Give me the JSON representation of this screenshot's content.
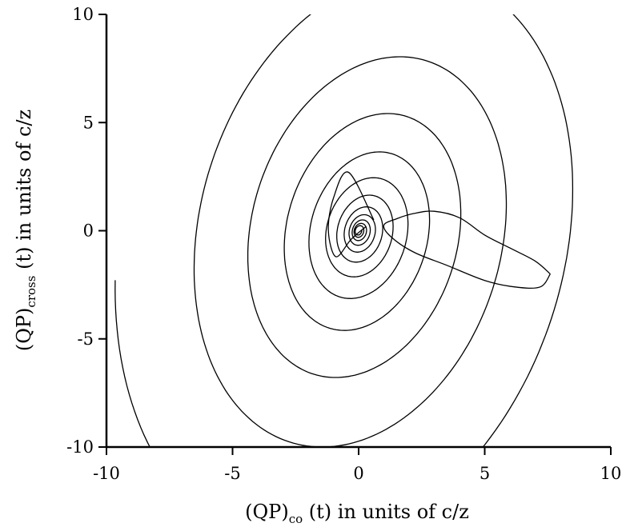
{
  "chart_data": {
    "type": "line",
    "title": "",
    "xlabel": {
      "pre": "(QP)",
      "sub": "co",
      "post": " (t) in units of c/z"
    },
    "ylabel": {
      "pre": "(QP)",
      "sub": "cross",
      "post": " (t) in units of c/z"
    },
    "xlim": [
      -10,
      10
    ],
    "ylim": [
      -10,
      10
    ],
    "xticks": [
      -10,
      -5,
      0,
      5,
      10
    ],
    "yticks": [
      -10,
      -5,
      0,
      5,
      10
    ],
    "xtick_labels": [
      "-10",
      "-5",
      "0",
      "5",
      "10"
    ],
    "ytick_labels": [
      "-10",
      "-5",
      "0",
      "5",
      "10"
    ],
    "grid": false,
    "line_color": "#000000",
    "trajectory": {
      "start": [
        7.6,
        -2.0
      ],
      "points": [
        [
          7.6,
          -2.0
        ],
        [
          7.0,
          -1.4
        ],
        [
          6.0,
          -0.8
        ],
        [
          5.0,
          -0.2
        ],
        [
          4.0,
          0.6
        ],
        [
          3.0,
          0.9
        ],
        [
          2.2,
          0.8
        ],
        [
          1.5,
          0.55
        ],
        [
          1.0,
          0.25
        ],
        [
          1.3,
          -0.3
        ],
        [
          2.2,
          -1.0
        ],
        [
          3.5,
          -1.6
        ],
        [
          5.0,
          -2.3
        ],
        [
          6.2,
          -2.6
        ],
        [
          7.2,
          -2.6
        ],
        [
          7.6,
          -2.0
        ]
      ],
      "triangle_loop": [
        [
          0.6,
          0.5
        ],
        [
          -0.4,
          2.7
        ],
        [
          -1.0,
          1.5
        ],
        [
          -1.2,
          0.0
        ],
        [
          -0.9,
          -1.2
        ],
        [
          -0.3,
          -0.4
        ],
        [
          0.3,
          0.2
        ]
      ]
    },
    "spiral": {
      "center": [
        0.0,
        0.0
      ],
      "semi_axes_start": [
        9.6,
        16.2
      ],
      "semi_axes_end": [
        0.12,
        0.18
      ],
      "tilt_deg": -12,
      "turns": 11.5,
      "angle_start_deg": 195,
      "amplitude_decay": "geometric",
      "drift_per_turn": [
        0.05,
        -0.02
      ]
    }
  }
}
